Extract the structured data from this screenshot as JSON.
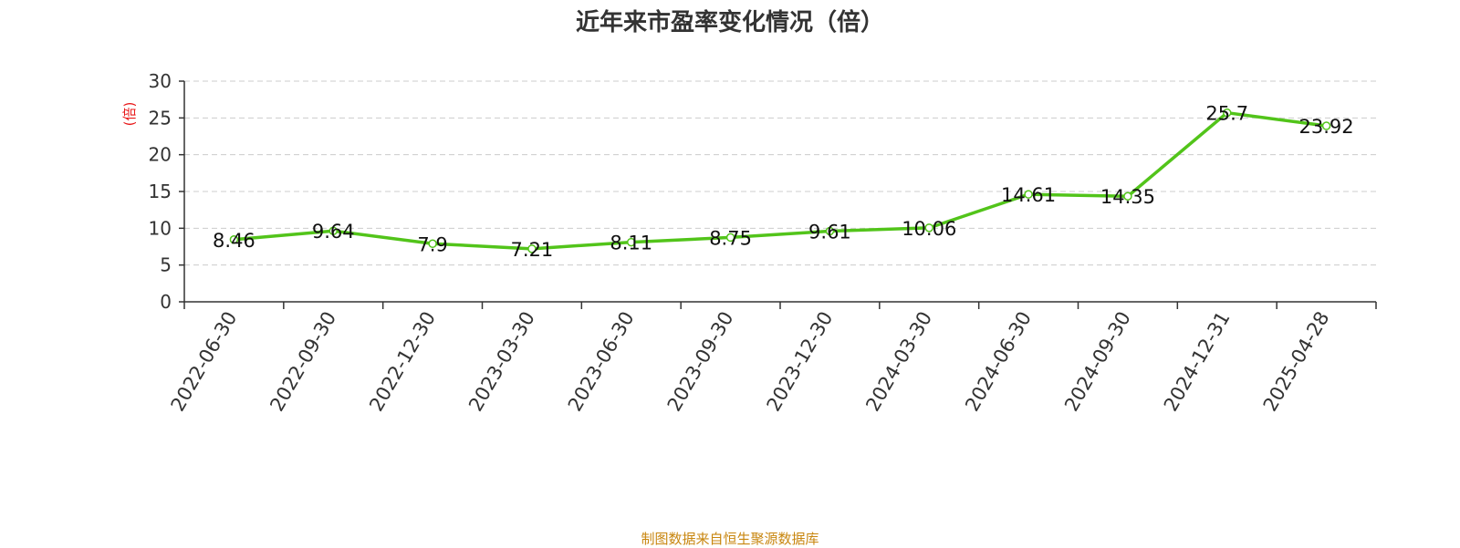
{
  "title": "近年来市盈率变化情况（倍）",
  "source": "制图数据来自恒生聚源数据库",
  "colors": {
    "line": "#52c41a",
    "axis_unit": "#e8191a",
    "source": "#c8860f",
    "grid": "#cccccc",
    "axis": "#333333"
  },
  "chart_data": {
    "type": "line",
    "title": "近年来市盈率变化情况（倍）",
    "ylabel": "(倍)",
    "xlabel": "",
    "ylim": [
      0,
      30
    ],
    "yticks": [
      0,
      5,
      10,
      15,
      20,
      25,
      30
    ],
    "grid": true,
    "categories": [
      "2022-06-30",
      "2022-09-30",
      "2022-12-30",
      "2023-03-30",
      "2023-06-30",
      "2023-09-30",
      "2023-12-30",
      "2024-03-30",
      "2024-06-30",
      "2024-09-30",
      "2024-12-31",
      "2025-04-28"
    ],
    "series": [
      {
        "values": [
          8.46,
          9.64,
          7.9,
          7.21,
          8.11,
          8.75,
          9.61,
          10.06,
          14.61,
          14.35,
          25.7,
          23.92
        ],
        "labels": [
          "8.46",
          "9.64",
          "7.9",
          "7.21",
          "8.11",
          "8.75",
          "9.61",
          "10.06",
          "14.61",
          "14.35",
          "25.7",
          "23.92"
        ]
      }
    ]
  }
}
